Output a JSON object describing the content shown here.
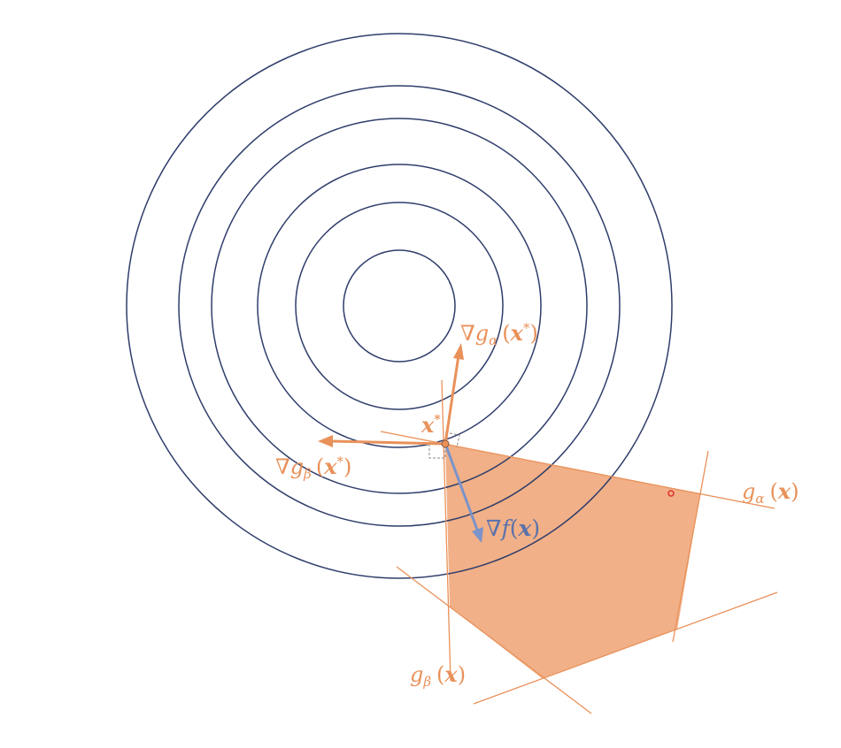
{
  "colors": {
    "contour": "#2f3d6b",
    "orange": "#e9915a",
    "region_fill": "#f1b087",
    "gradient_f": "#7b93c9",
    "point_red": "#e0302a",
    "background": "#ffffff"
  },
  "labels": {
    "grad_g_alpha": {
      "nabla": "∇",
      "g": "g",
      "sub": "α",
      "open": "(",
      "x": "x",
      "star": "*",
      "close": ")"
    },
    "grad_g_beta": {
      "nabla": "∇",
      "g": "g",
      "sub": "β",
      "open": "(",
      "x": "x",
      "star": "*",
      "close": ")"
    },
    "grad_f": {
      "nabla": "∇",
      "f": "f",
      "open": "(",
      "x": "x",
      "close": ")"
    },
    "x_star": {
      "x": "x",
      "star": "*"
    },
    "g_alpha": {
      "g": "g",
      "sub": "α",
      "open": "(",
      "x": "x",
      "close": ")"
    },
    "g_beta": {
      "g": "g",
      "sub": "β",
      "open": "(",
      "x": "x",
      "close": ")"
    }
  }
}
